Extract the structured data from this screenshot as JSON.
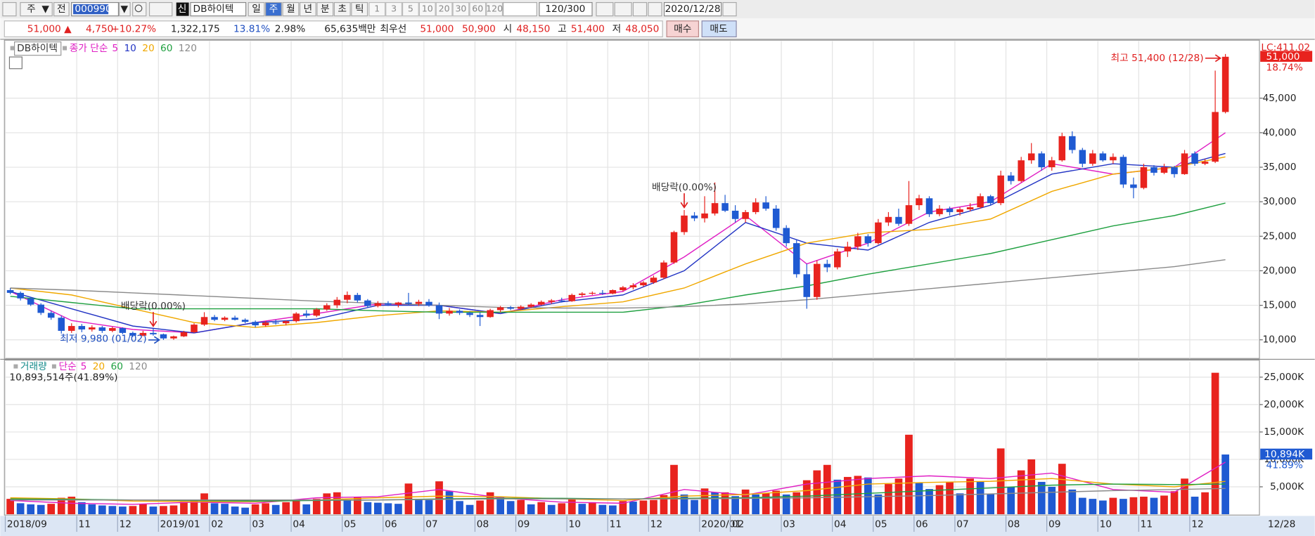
{
  "toolbar": {
    "period_unit": "주",
    "scope": "전",
    "code": "000990",
    "badge": "신",
    "name": "DB하이텍",
    "periods": [
      "일",
      "주",
      "월",
      "년",
      "분",
      "초",
      "틱"
    ],
    "intervals": [
      "1",
      "3",
      "5",
      "10",
      "20",
      "30",
      "60",
      "120"
    ],
    "count": "120/300",
    "date": "2020/12/28"
  },
  "quote": {
    "price": "51,000 ▲",
    "change": "4,750",
    "change_rate": "+10.27%",
    "volume": "1,322,175",
    "turnover": "13.81%",
    "ratio": "2.98%",
    "amount": "65,635백만",
    "best_label": "최우선",
    "ask": "51,000",
    "bid": "50,900",
    "open_label": "시",
    "open": "48,150",
    "high_label": "고",
    "high": "51,400",
    "low_label": "저",
    "low": "48,050",
    "buy": "매수",
    "sell": "매도"
  },
  "chart_data": {
    "type": "candlestick",
    "legend_title": "DB하이텍",
    "ma_prefix": "종가 단순",
    "volume_title": "거래량",
    "volume_ma_prefix": "단순",
    "volume_info": "10,893,514주(41.89%)",
    "up_color": "#e8231e",
    "down_color": "#1f5ad2",
    "categories": [
      "2018/09",
      null,
      null,
      null,
      null,
      null,
      null,
      "11",
      null,
      null,
      null,
      "12",
      null,
      null,
      null,
      "2019/01",
      null,
      null,
      null,
      null,
      "02",
      null,
      null,
      null,
      "03",
      null,
      null,
      null,
      "04",
      null,
      null,
      null,
      null,
      "05",
      null,
      null,
      null,
      "06",
      null,
      null,
      null,
      "07",
      null,
      null,
      null,
      null,
      "08",
      null,
      null,
      null,
      "09",
      null,
      null,
      null,
      null,
      "10",
      null,
      null,
      null,
      "11",
      null,
      null,
      null,
      "12",
      null,
      null,
      null,
      null,
      "2020/01",
      null,
      null,
      "02",
      null,
      null,
      null,
      null,
      "03",
      null,
      null,
      null,
      null,
      "04",
      null,
      null,
      null,
      "05",
      null,
      null,
      null,
      "06",
      null,
      null,
      null,
      "07",
      null,
      null,
      null,
      null,
      "08",
      null,
      null,
      null,
      "09",
      null,
      null,
      null,
      null,
      "10",
      null,
      null,
      null,
      "11",
      null,
      null,
      null,
      null,
      "12",
      null,
      null,
      null
    ],
    "end_label": "12/28",
    "ohlc": {
      "open": [
        17200,
        16800,
        16000,
        15100,
        13900,
        13200,
        11300,
        12000,
        11500,
        11800,
        11300,
        11700,
        11000,
        10600,
        11000,
        10800,
        10200,
        10500,
        11100,
        12200,
        13300,
        12900,
        13200,
        12900,
        12600,
        12100,
        12500,
        12400,
        12700,
        13800,
        13500,
        14400,
        15000,
        15800,
        16500,
        15700,
        14900,
        15300,
        15100,
        15400,
        15200,
        15500,
        15000,
        13800,
        14200,
        13900,
        13600,
        13300,
        14300,
        14700,
        14500,
        14800,
        15100,
        15500,
        15700,
        15600,
        16500,
        16700,
        16800,
        16700,
        17200,
        17600,
        17900,
        18300,
        19000,
        21200,
        25600,
        28000,
        27600,
        28300,
        29800,
        28700,
        27500,
        28500,
        29900,
        29000,
        26200,
        24000,
        19500,
        16200,
        21000,
        20500,
        22800,
        23500,
        25000,
        24000,
        27000,
        27800,
        26800,
        29500,
        30500,
        28200,
        29000,
        28500,
        28900,
        29200,
        30800,
        29800,
        33800,
        33000,
        36000,
        37000,
        35000,
        36000,
        39500,
        37500,
        35500,
        37000,
        36000,
        36500,
        32500,
        32000,
        35000,
        34200,
        35000,
        34000,
        37000,
        35500,
        35800,
        43000
      ],
      "high": [
        17500,
        17000,
        16200,
        15300,
        14200,
        13500,
        12400,
        12300,
        12100,
        12000,
        11900,
        11800,
        11200,
        11300,
        11600,
        10900,
        10600,
        11300,
        12400,
        14000,
        13600,
        13400,
        13500,
        13100,
        12800,
        12700,
        12900,
        12800,
        14000,
        14300,
        14600,
        15300,
        16200,
        17000,
        16800,
        15900,
        15600,
        15600,
        15500,
        16800,
        15800,
        15900,
        15400,
        14600,
        14400,
        14100,
        14000,
        14500,
        14900,
        14900,
        15000,
        15300,
        15700,
        15900,
        16100,
        16700,
        16900,
        17000,
        17200,
        17300,
        17800,
        18200,
        18500,
        19300,
        21500,
        25800,
        28800,
        28500,
        30800,
        32800,
        31000,
        29500,
        28800,
        30500,
        30800,
        29500,
        26600,
        24500,
        21000,
        21500,
        21600,
        23200,
        24200,
        25500,
        25300,
        27500,
        28500,
        29000,
        33000,
        31000,
        30800,
        29500,
        29300,
        29200,
        29800,
        31200,
        31000,
        34500,
        34300,
        36500,
        38500,
        37300,
        36500,
        40000,
        40200,
        37800,
        37500,
        37300,
        37000,
        36800,
        33500,
        35500,
        35300,
        35500,
        35200,
        37500,
        37300,
        36200,
        49000,
        51400
      ],
      "low": [
        16600,
        15700,
        14900,
        13600,
        12900,
        10900,
        11000,
        11100,
        11200,
        11000,
        11100,
        10800,
        10400,
        10500,
        10600,
        9980,
        10000,
        10400,
        11000,
        12000,
        12700,
        12700,
        12800,
        12400,
        11800,
        11900,
        12200,
        12100,
        12500,
        13200,
        13300,
        14200,
        14600,
        15300,
        15400,
        14600,
        14700,
        14900,
        14700,
        15000,
        14900,
        14800,
        13000,
        13500,
        13600,
        13300,
        12000,
        13200,
        14000,
        14300,
        14300,
        14600,
        15000,
        15200,
        15400,
        15500,
        16200,
        16500,
        16500,
        16600,
        17000,
        17300,
        17700,
        18100,
        18800,
        21000,
        25200,
        27200,
        27000,
        28000,
        28500,
        27000,
        27000,
        28200,
        28700,
        25800,
        23500,
        19000,
        14500,
        15800,
        19800,
        20200,
        22000,
        23000,
        23500,
        23800,
        26500,
        26500,
        26500,
        28800,
        27800,
        27900,
        28000,
        28000,
        28600,
        29000,
        29500,
        29500,
        32500,
        32800,
        35500,
        34500,
        34500,
        35800,
        37000,
        35000,
        35200,
        35800,
        35500,
        32000,
        30500,
        31800,
        33800,
        34000,
        33500,
        33900,
        35200,
        35300,
        35600,
        42800
      ],
      "close": [
        16800,
        16000,
        15100,
        13900,
        13200,
        11300,
        12000,
        11500,
        11800,
        11300,
        11700,
        11000,
        10600,
        11000,
        10800,
        10200,
        10500,
        11100,
        12200,
        13300,
        12900,
        13200,
        12900,
        12600,
        12100,
        12500,
        12400,
        12700,
        13800,
        13500,
        14400,
        15000,
        15800,
        16500,
        15700,
        14900,
        15300,
        15100,
        15400,
        15200,
        15500,
        15000,
        13800,
        14200,
        13900,
        13600,
        13300,
        14300,
        14700,
        14500,
        14800,
        15100,
        15500,
        15700,
        15600,
        16500,
        16700,
        16800,
        16700,
        17200,
        17600,
        17900,
        18300,
        19000,
        21200,
        25600,
        28000,
        27600,
        28300,
        29800,
        28700,
        27500,
        28500,
        29900,
        29000,
        26200,
        24000,
        19500,
        16200,
        21000,
        20500,
        22800,
        23500,
        25000,
        24000,
        27000,
        27800,
        26800,
        29500,
        30500,
        28200,
        29000,
        28500,
        28900,
        29200,
        30800,
        29800,
        33800,
        33000,
        36000,
        37000,
        35000,
        36000,
        39500,
        37500,
        35500,
        37000,
        36000,
        36500,
        32500,
        32000,
        35000,
        34200,
        35000,
        34000,
        37000,
        35500,
        35800,
        43000,
        51000
      ]
    },
    "volume": [
      2800,
      2000,
      1800,
      1700,
      1900,
      3000,
      3200,
      2200,
      1800,
      1600,
      1500,
      1400,
      1500,
      1900,
      1400,
      1500,
      1600,
      2300,
      2600,
      3800,
      2000,
      1900,
      1400,
      1200,
      1800,
      2000,
      1700,
      2200,
      2600,
      1800,
      2800,
      3800,
      4000,
      2500,
      3200,
      2200,
      2100,
      2000,
      1900,
      5600,
      2800,
      2600,
      6000,
      4200,
      2400,
      1700,
      2500,
      4000,
      3200,
      2400,
      2600,
      1800,
      2200,
      1700,
      2000,
      2800,
      1900,
      2200,
      1700,
      1600,
      2400,
      2300,
      2500,
      2600,
      3500,
      9000,
      3600,
      2600,
      4700,
      4000,
      4000,
      3300,
      4500,
      3600,
      3800,
      4300,
      3600,
      4000,
      6200,
      8000,
      9000,
      6300,
      6800,
      7000,
      6700,
      3600,
      5500,
      6500,
      14500,
      5700,
      4600,
      5300,
      5900,
      3800,
      6500,
      5900,
      3700,
      12000,
      5000,
      8000,
      10000,
      5900,
      5000,
      9200,
      4500,
      3000,
      2800,
      2500,
      3000,
      2800,
      3100,
      3200,
      3000,
      3400,
      4200,
      6500,
      3200,
      4000,
      25800,
      10894
    ],
    "ma_x": [
      0,
      6,
      12,
      18,
      24,
      30,
      36,
      42,
      48,
      54,
      60,
      66,
      72,
      78,
      84,
      90,
      96,
      102,
      108,
      114,
      119
    ],
    "ma": [
      {
        "name": "5",
        "color": "#e01fc4",
        "values": [
          17000,
          12800,
          11500,
          11000,
          12500,
          13800,
          15200,
          15000,
          13800,
          15800,
          17000,
          22000,
          28000,
          21000,
          24000,
          28500,
          30000,
          35500,
          34000,
          35000,
          40000
        ]
      },
      {
        "name": "10",
        "color": "#2234c4",
        "values": [
          17000,
          14500,
          12000,
          11000,
          12500,
          13000,
          15000,
          15000,
          13800,
          15500,
          16500,
          20000,
          27000,
          24000,
          23000,
          27000,
          29500,
          34000,
          35500,
          35000,
          37000
        ]
      },
      {
        "name": "20",
        "color": "#f0a800",
        "values": [
          17500,
          16500,
          14500,
          12500,
          11800,
          12500,
          13500,
          14200,
          14000,
          14800,
          15500,
          17500,
          21000,
          24000,
          25500,
          26000,
          27500,
          31500,
          34000,
          35000,
          36500
        ]
      },
      {
        "name": "60",
        "color": "#1fa040",
        "values": [
          16300,
          15400,
          14500,
          14500,
          14500,
          14500,
          14200,
          14000,
          14000,
          14000,
          14000,
          15000,
          16500,
          17800,
          19500,
          21000,
          22500,
          24500,
          26500,
          28000,
          29800
        ]
      },
      {
        "name": "120",
        "color": "#8a8a8a",
        "values": [
          17500,
          17200,
          16800,
          16400,
          16000,
          15600,
          15300,
          15000,
          14700,
          14600,
          14600,
          14800,
          15200,
          15800,
          16600,
          17400,
          18200,
          19000,
          19800,
          20600,
          21600
        ]
      }
    ],
    "volume_ma": [
      {
        "name": "5",
        "color": "#e01fc4",
        "values": [
          2500,
          2000,
          1800,
          2200,
          2000,
          3000,
          3200,
          4500,
          3000,
          2200,
          2000,
          4500,
          3500,
          5500,
          6500,
          7000,
          6500,
          7500,
          4500,
          4000,
          9500
        ]
      },
      {
        "name": "20",
        "color": "#f0a800",
        "values": [
          3000,
          2800,
          2400,
          2300,
          2300,
          2600,
          3000,
          3300,
          3200,
          2800,
          2500,
          3300,
          3600,
          4300,
          5500,
          5800,
          6000,
          6500,
          5500,
          5000,
          6000
        ]
      },
      {
        "name": "60",
        "color": "#1fa040",
        "values": [
          2800,
          2700,
          2600,
          2500,
          2400,
          2500,
          2600,
          2800,
          2900,
          2900,
          2800,
          2900,
          3000,
          3300,
          3800,
          4300,
          4800,
          5300,
          5500,
          5400,
          5500
        ]
      },
      {
        "name": "120",
        "color": "#8a8a8a",
        "values": [
          2600,
          2600,
          2600,
          2600,
          2600,
          2600,
          2600,
          2700,
          2800,
          2800,
          2800,
          2800,
          2900,
          3000,
          3200,
          3400,
          3700,
          4000,
          4300,
          4500,
          4700
        ]
      }
    ],
    "ylim": [
      7300,
      53400
    ],
    "yticks": [
      {
        "value": 10000,
        "label": "10,000"
      },
      {
        "value": 15000,
        "label": "15,000"
      },
      {
        "value": 20000,
        "label": "20,000"
      },
      {
        "value": 25000,
        "label": "25,000"
      },
      {
        "value": 30000,
        "label": "30,000"
      },
      {
        "value": 35000,
        "label": "35,000"
      },
      {
        "value": 40000,
        "label": "40,000"
      },
      {
        "value": 45000,
        "label": "45,000"
      }
    ],
    "volume_ylim": [
      0,
      27800
    ],
    "volume_yticks": [
      {
        "value": 5000,
        "label": "5,000K"
      },
      {
        "value": 10000,
        "label": "10,000K"
      },
      {
        "value": 15000,
        "label": "15,000K"
      },
      {
        "value": 20000,
        "label": "20,000K"
      },
      {
        "value": 25000,
        "label": "25,000K"
      }
    ],
    "grid": true,
    "lc_label": "LC:411.02",
    "last_price": {
      "value": 51000,
      "label": "51,000"
    },
    "last_change": "18.74%",
    "last_volume": {
      "value": 10894,
      "label": "10,894K"
    },
    "last_volume_ratio": "41.89%",
    "dividends": [
      {
        "text": "배당락(0.00%)",
        "at": 14
      },
      {
        "text": "배당락(0.00%)",
        "at": 66
      }
    ],
    "low_mark": {
      "text": "최저 9,980 (01/02)",
      "at": 15
    },
    "high_mark": {
      "text": "최고 51,400 (12/28)",
      "at": 119
    }
  }
}
